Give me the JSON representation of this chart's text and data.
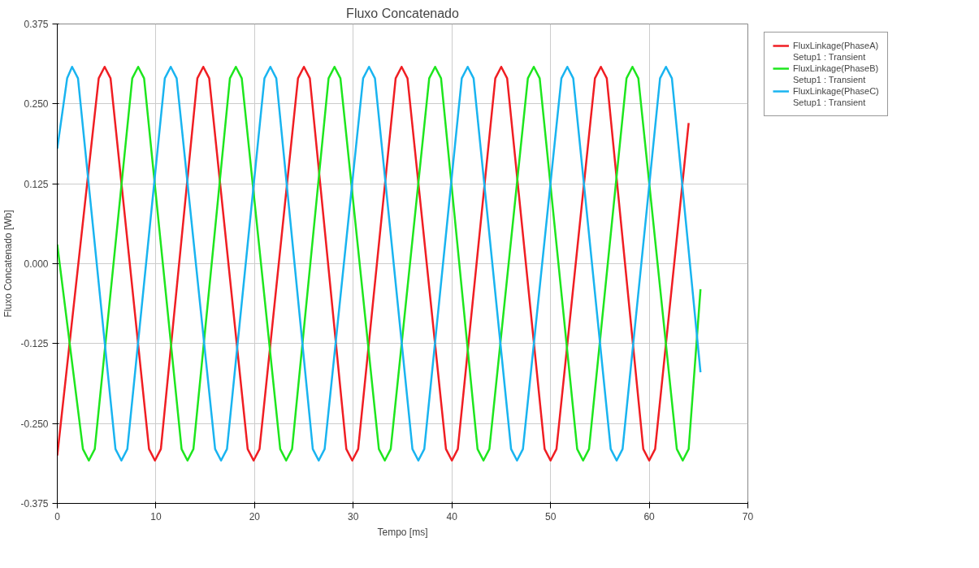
{
  "chart_data": {
    "type": "line",
    "title": "Fluxo Concatenado",
    "xlabel": "Tempo [ms]",
    "ylabel": "Fluxo Concatenado [Wb]",
    "xlim": [
      0,
      70
    ],
    "ylim": [
      -0.375,
      0.375
    ],
    "xticks": [
      0,
      10,
      20,
      30,
      40,
      50,
      60,
      70
    ],
    "yticks": [
      {
        "value": -0.375,
        "label": "-0.375"
      },
      {
        "value": -0.25,
        "label": "-0.250"
      },
      {
        "value": -0.125,
        "label": "-0.125"
      },
      {
        "value": 0,
        "label": "0.000"
      },
      {
        "value": 0.125,
        "label": "0.125"
      },
      {
        "value": 0.25,
        "label": "0.250"
      },
      {
        "value": 0.375,
        "label": "0.375"
      }
    ],
    "grid": true,
    "legend": "top right",
    "line_style": "solid",
    "marker": "none",
    "series": [
      {
        "name": "FluxLinkage(PhaseA)\nSetup1 : Transient",
        "color": "#f01e23",
        "x": [
          0,
          4.2,
          4.8,
          5.4,
          9.3,
          9.9,
          10.5,
          14.2,
          14.8,
          15.4,
          19.3,
          19.9,
          20.5,
          24.4,
          25.0,
          25.6,
          29.3,
          29.9,
          30.5,
          34.3,
          34.9,
          35.5,
          39.4,
          40.0,
          40.6,
          44.4,
          45.0,
          45.6,
          49.4,
          50.0,
          50.6,
          54.5,
          55.1,
          55.7,
          59.4,
          60.0,
          60.6,
          64.0
        ],
        "values": [
          -0.3,
          0.29,
          0.308,
          0.29,
          -0.29,
          -0.308,
          -0.29,
          0.29,
          0.308,
          0.29,
          -0.29,
          -0.308,
          -0.29,
          0.29,
          0.308,
          0.29,
          -0.29,
          -0.308,
          -0.29,
          0.29,
          0.308,
          0.29,
          -0.29,
          -0.308,
          -0.29,
          0.29,
          0.308,
          0.29,
          -0.29,
          -0.308,
          -0.29,
          0.29,
          0.308,
          0.29,
          -0.29,
          -0.308,
          -0.29,
          0.22
        ]
      },
      {
        "name": "FluxLinkage(PhaseB)\nSetup1 : Transient",
        "color": "#1ee61e",
        "x": [
          0,
          2.6,
          3.2,
          3.8,
          7.6,
          8.2,
          8.8,
          12.6,
          13.2,
          13.8,
          17.5,
          18.1,
          18.7,
          22.6,
          23.2,
          23.8,
          27.5,
          28.1,
          28.7,
          32.6,
          33.2,
          33.8,
          37.7,
          38.3,
          38.9,
          42.6,
          43.2,
          43.8,
          47.7,
          48.3,
          48.9,
          52.7,
          53.3,
          53.9,
          57.7,
          58.3,
          58.9,
          62.8,
          63.4,
          64.0,
          65.2
        ],
        "values": [
          0.03,
          -0.29,
          -0.308,
          -0.29,
          0.29,
          0.308,
          0.29,
          -0.29,
          -0.308,
          -0.29,
          0.29,
          0.308,
          0.29,
          -0.29,
          -0.308,
          -0.29,
          0.29,
          0.308,
          0.29,
          -0.29,
          -0.308,
          -0.29,
          0.29,
          0.308,
          0.29,
          -0.29,
          -0.308,
          -0.29,
          0.29,
          0.308,
          0.29,
          -0.29,
          -0.308,
          -0.29,
          0.29,
          0.308,
          0.29,
          -0.29,
          -0.308,
          -0.29,
          -0.04
        ]
      },
      {
        "name": "FluxLinkage(PhaseC)\nSetup1 : Transient",
        "color": "#19b4f0",
        "x": [
          0,
          1.0,
          1.5,
          2.1,
          5.9,
          6.5,
          7.1,
          10.9,
          11.5,
          12.1,
          16.0,
          16.6,
          17.2,
          21.0,
          21.6,
          22.2,
          25.9,
          26.5,
          27.1,
          31.0,
          31.6,
          32.2,
          36.0,
          36.6,
          37.2,
          41.0,
          41.6,
          42.2,
          46.0,
          46.6,
          47.2,
          51.1,
          51.7,
          52.3,
          56.1,
          56.7,
          57.3,
          61.1,
          61.7,
          62.3,
          65.2
        ],
        "values": [
          0.18,
          0.29,
          0.308,
          0.29,
          -0.29,
          -0.308,
          -0.29,
          0.29,
          0.308,
          0.29,
          -0.29,
          -0.308,
          -0.29,
          0.29,
          0.308,
          0.29,
          -0.29,
          -0.308,
          -0.29,
          0.29,
          0.308,
          0.29,
          -0.29,
          -0.308,
          -0.29,
          0.29,
          0.308,
          0.29,
          -0.29,
          -0.308,
          -0.29,
          0.29,
          0.308,
          0.29,
          -0.29,
          -0.308,
          -0.29,
          0.29,
          0.308,
          0.29,
          -0.17
        ]
      }
    ]
  }
}
